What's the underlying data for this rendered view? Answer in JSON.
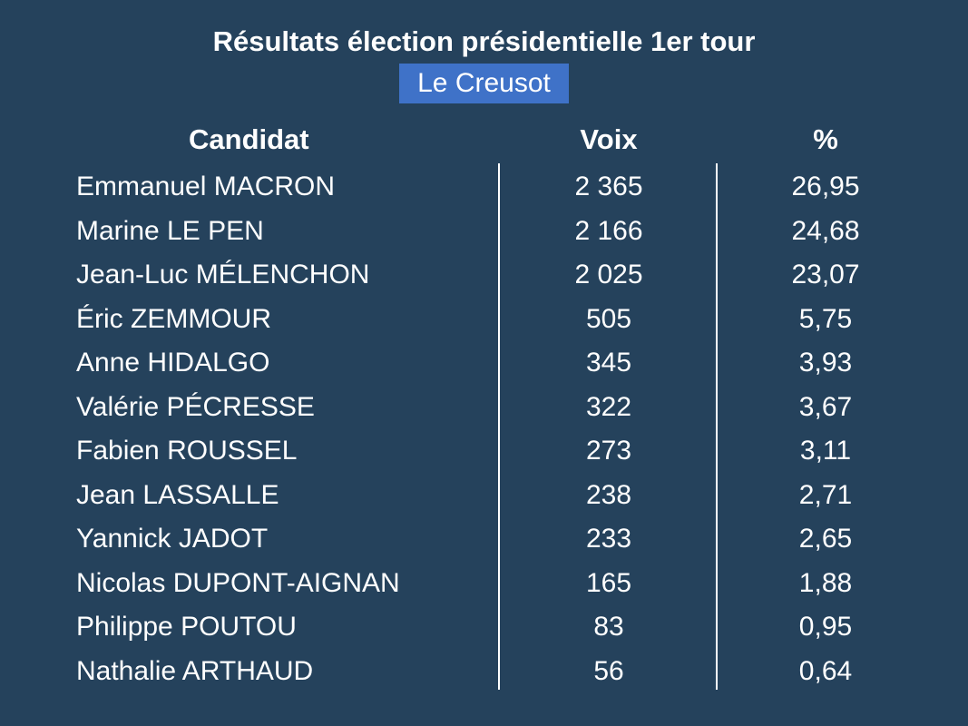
{
  "chart_data": {
    "type": "table",
    "title": "Résultats élection présidentielle 1er tour",
    "subtitle": "Le Creusot",
    "columns": [
      "Candidat",
      "Voix",
      "%"
    ],
    "rows": [
      {
        "candidat": "Emmanuel MACRON",
        "voix": "2 365",
        "pct": "26,95"
      },
      {
        "candidat": "Marine LE PEN",
        "voix": "2 166",
        "pct": "24,68"
      },
      {
        "candidat": "Jean-Luc MÉLENCHON",
        "voix": "2 025",
        "pct": "23,07"
      },
      {
        "candidat": "Éric ZEMMOUR",
        "voix": "505",
        "pct": "5,75"
      },
      {
        "candidat": "Anne HIDALGO",
        "voix": "345",
        "pct": "3,93"
      },
      {
        "candidat": "Valérie PÉCRESSE",
        "voix": "322",
        "pct": "3,67"
      },
      {
        "candidat": "Fabien ROUSSEL",
        "voix": "273",
        "pct": "3,11"
      },
      {
        "candidat": "Jean LASSALLE",
        "voix": "238",
        "pct": "2,71"
      },
      {
        "candidat": "Yannick JADOT",
        "voix": "233",
        "pct": "2,65"
      },
      {
        "candidat": "Nicolas DUPONT-AIGNAN",
        "voix": "165",
        "pct": "1,88"
      },
      {
        "candidat": "Philippe POUTOU",
        "voix": "83",
        "pct": "0,95"
      },
      {
        "candidat": "Nathalie ARTHAUD",
        "voix": "56",
        "pct": "0,64"
      }
    ]
  },
  "colors": {
    "background": "#25425c",
    "subtitle_bg": "#3f72c8",
    "text": "#ffffff"
  }
}
